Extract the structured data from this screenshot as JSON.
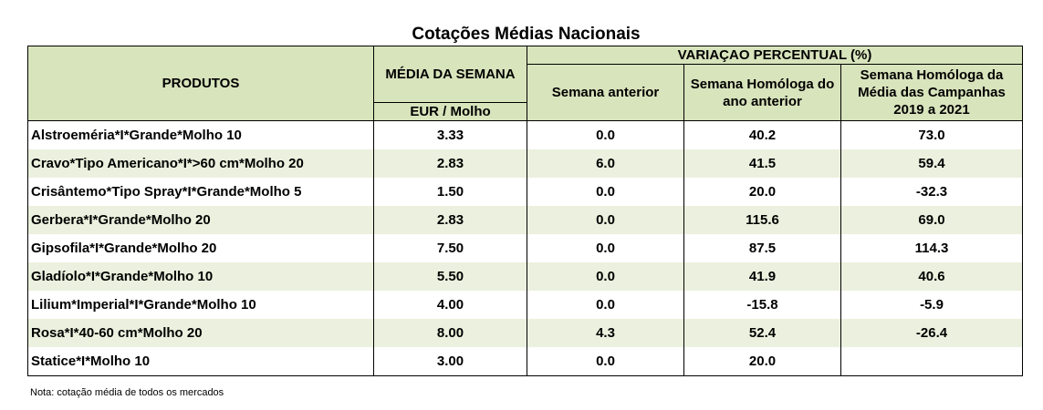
{
  "title": "Cotações Médias Nacionais",
  "header": {
    "produtos": "PRODUTOS",
    "media_semana": "MÉDIA DA SEMANA",
    "unit": "EUR / Molho",
    "variacao": "VARIAÇAO PERCENTUAL (%)",
    "semana_anterior": "Semana anterior",
    "semana_homologa": "Semana Homóloga do ano anterior",
    "semana_homologa_campanhas": "Semana Homóloga da Média das Campanhas 2019 a 2021"
  },
  "rows": [
    {
      "produto": "Alstroeméria*I*Grande*Molho 10",
      "media": "3.33",
      "anterior": "0.0",
      "homologa": "40.2",
      "campanhas": "73.0"
    },
    {
      "produto": "Cravo*Tipo Americano*I*>60 cm*Molho 20",
      "media": "2.83",
      "anterior": "6.0",
      "homologa": "41.5",
      "campanhas": "59.4"
    },
    {
      "produto": "Crisântemo*Tipo Spray*I*Grande*Molho 5",
      "media": "1.50",
      "anterior": "0.0",
      "homologa": "20.0",
      "campanhas": "-32.3"
    },
    {
      "produto": "Gerbera*I*Grande*Molho 20",
      "media": "2.83",
      "anterior": "0.0",
      "homologa": "115.6",
      "campanhas": "69.0"
    },
    {
      "produto": "Gipsofila*I*Grande*Molho 20",
      "media": "7.50",
      "anterior": "0.0",
      "homologa": "87.5",
      "campanhas": "114.3"
    },
    {
      "produto": "Gladíolo*I*Grande*Molho 10",
      "media": "5.50",
      "anterior": "0.0",
      "homologa": "41.9",
      "campanhas": "40.6"
    },
    {
      "produto": "Lilium*Imperial*I*Grande*Molho 10",
      "media": "4.00",
      "anterior": "0.0",
      "homologa": "-15.8",
      "campanhas": "-5.9"
    },
    {
      "produto": "Rosa*I*40-60 cm*Molho 20",
      "media": "8.00",
      "anterior": "4.3",
      "homologa": "52.4",
      "campanhas": "-26.4"
    },
    {
      "produto": "Statice*I*Molho 10",
      "media": "3.00",
      "anterior": "0.0",
      "homologa": "20.0",
      "campanhas": ""
    }
  ],
  "note": "Nota: cotação média de todos os mercados",
  "colors": {
    "header_bg": "#d8e4bc",
    "stripe_bg": "#ebf1de"
  }
}
